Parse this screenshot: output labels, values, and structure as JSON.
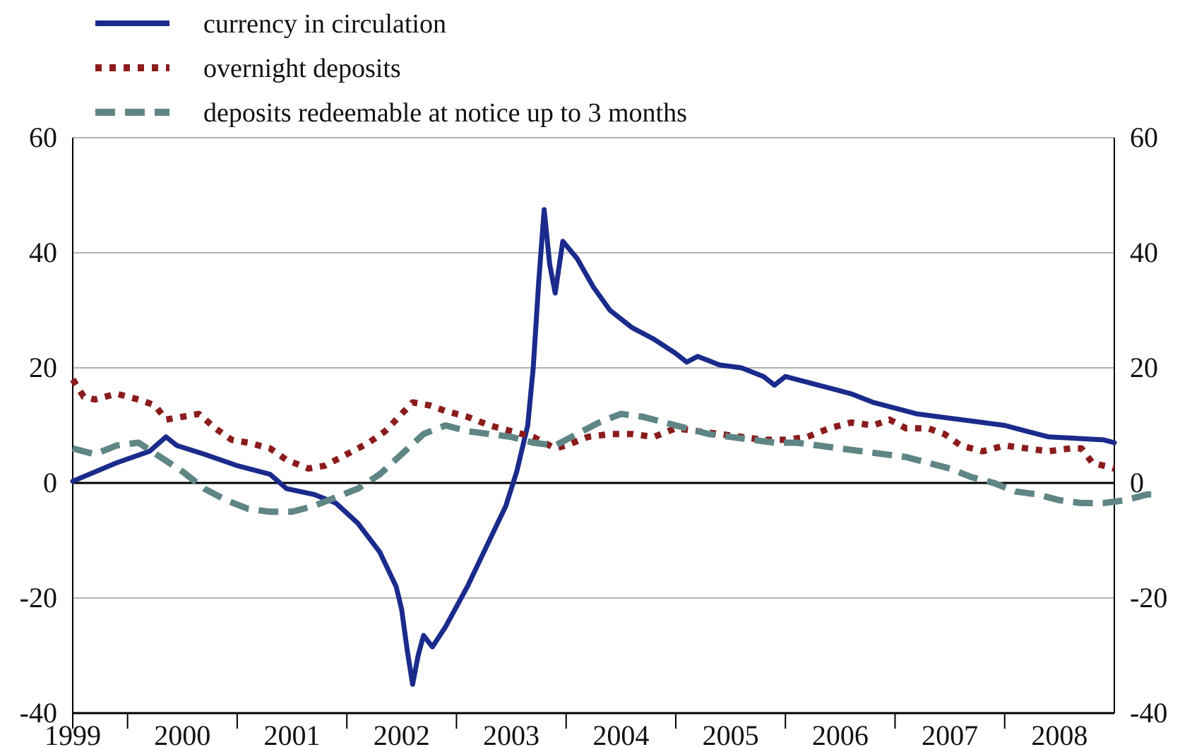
{
  "chart_data": {
    "type": "line",
    "title": "",
    "xlabel": "",
    "ylabel": "",
    "x_start": 1999.0,
    "x_end": 2008.5,
    "ylim": [
      -40,
      60
    ],
    "yticks": [
      -40,
      -20,
      0,
      20,
      40,
      60
    ],
    "x_tick_labels": [
      {
        "year": 1999,
        "label": "1999"
      },
      {
        "year": 2000,
        "label": "2000"
      },
      {
        "year": 2001,
        "label": "2001"
      },
      {
        "year": 2002,
        "label": "2002"
      },
      {
        "year": 2003,
        "label": "2003"
      },
      {
        "year": 2004,
        "label": "2004"
      },
      {
        "year": 2005,
        "label": "2005"
      },
      {
        "year": 2006,
        "label": "2006"
      },
      {
        "year": 2007,
        "label": "2007"
      },
      {
        "year": 2008,
        "label": "2008"
      }
    ],
    "grid": true,
    "legend_position": "top-left",
    "series": [
      {
        "name": "currency in circulation",
        "color": "#1a2b8c",
        "style": "solid",
        "points": [
          [
            1999.0,
            0.3
          ],
          [
            1999.15,
            1.5
          ],
          [
            1999.4,
            3.5
          ],
          [
            1999.7,
            5.5
          ],
          [
            1999.85,
            8.0
          ],
          [
            1999.95,
            6.5
          ],
          [
            2000.2,
            5.0
          ],
          [
            2000.5,
            3.0
          ],
          [
            2000.8,
            1.5
          ],
          [
            2000.95,
            -1.0
          ],
          [
            2001.2,
            -2.0
          ],
          [
            2001.4,
            -3.5
          ],
          [
            2001.6,
            -7.0
          ],
          [
            2001.8,
            -12.0
          ],
          [
            2001.95,
            -18.0
          ],
          [
            2002.0,
            -22.0
          ],
          [
            2002.05,
            -29.0
          ],
          [
            2002.1,
            -35.0
          ],
          [
            2002.15,
            -30.0
          ],
          [
            2002.2,
            -26.5
          ],
          [
            2002.28,
            -28.5
          ],
          [
            2002.4,
            -25.0
          ],
          [
            2002.6,
            -18.0
          ],
          [
            2002.8,
            -10.0
          ],
          [
            2002.95,
            -4.0
          ],
          [
            2003.05,
            2.0
          ],
          [
            2003.15,
            10.0
          ],
          [
            2003.2,
            20.0
          ],
          [
            2003.25,
            35.0
          ],
          [
            2003.3,
            47.5
          ],
          [
            2003.35,
            38.0
          ],
          [
            2003.4,
            33.0
          ],
          [
            2003.47,
            42.0
          ],
          [
            2003.6,
            39.0
          ],
          [
            2003.75,
            34.0
          ],
          [
            2003.9,
            30.0
          ],
          [
            2004.1,
            27.0
          ],
          [
            2004.3,
            25.0
          ],
          [
            2004.5,
            22.5
          ],
          [
            2004.6,
            21.0
          ],
          [
            2004.7,
            22.0
          ],
          [
            2004.9,
            20.5
          ],
          [
            2005.1,
            20.0
          ],
          [
            2005.3,
            18.5
          ],
          [
            2005.4,
            17.0
          ],
          [
            2005.5,
            18.5
          ],
          [
            2005.7,
            17.5
          ],
          [
            2005.9,
            16.5
          ],
          [
            2006.1,
            15.5
          ],
          [
            2006.3,
            14.0
          ],
          [
            2006.5,
            13.0
          ],
          [
            2006.7,
            12.0
          ],
          [
            2006.9,
            11.5
          ],
          [
            2007.1,
            11.0
          ],
          [
            2007.3,
            10.5
          ],
          [
            2007.5,
            10.0
          ],
          [
            2007.7,
            9.0
          ],
          [
            2007.9,
            8.0
          ],
          [
            2008.1,
            7.8
          ],
          [
            2008.3,
            7.6
          ],
          [
            2008.4,
            7.5
          ],
          [
            2008.5,
            7.0
          ]
        ]
      },
      {
        "name": "overnight deposits",
        "color": "#8b1c1c",
        "style": "dotted",
        "points": [
          [
            1999.0,
            18.0
          ],
          [
            1999.1,
            15.0
          ],
          [
            1999.2,
            14.5
          ],
          [
            1999.4,
            15.5
          ],
          [
            1999.6,
            14.5
          ],
          [
            1999.75,
            13.5
          ],
          [
            1999.85,
            11.0
          ],
          [
            2000.0,
            11.5
          ],
          [
            2000.15,
            12.0
          ],
          [
            2000.3,
            9.5
          ],
          [
            2000.45,
            7.5
          ],
          [
            2000.6,
            7.0
          ],
          [
            2000.8,
            6.0
          ],
          [
            2000.95,
            4.0
          ],
          [
            2001.15,
            2.5
          ],
          [
            2001.3,
            3.0
          ],
          [
            2001.5,
            5.0
          ],
          [
            2001.7,
            7.0
          ],
          [
            2001.85,
            9.0
          ],
          [
            2002.0,
            12.0
          ],
          [
            2002.1,
            14.0
          ],
          [
            2002.25,
            13.5
          ],
          [
            2002.4,
            12.5
          ],
          [
            2002.6,
            11.5
          ],
          [
            2002.8,
            10.0
          ],
          [
            2003.0,
            9.0
          ],
          [
            2003.2,
            8.0
          ],
          [
            2003.4,
            6.0
          ],
          [
            2003.5,
            6.5
          ],
          [
            2003.7,
            8.0
          ],
          [
            2003.9,
            8.5
          ],
          [
            2004.1,
            8.5
          ],
          [
            2004.3,
            8.0
          ],
          [
            2004.5,
            9.5
          ],
          [
            2004.7,
            9.0
          ],
          [
            2004.9,
            8.5
          ],
          [
            2005.1,
            8.0
          ],
          [
            2005.3,
            7.5
          ],
          [
            2005.5,
            7.5
          ],
          [
            2005.7,
            8.0
          ],
          [
            2005.9,
            9.5
          ],
          [
            2006.1,
            10.5
          ],
          [
            2006.3,
            10.0
          ],
          [
            2006.45,
            11.0
          ],
          [
            2006.6,
            9.5
          ],
          [
            2006.8,
            9.5
          ],
          [
            2006.95,
            8.5
          ],
          [
            2007.1,
            6.5
          ],
          [
            2007.3,
            5.5
          ],
          [
            2007.5,
            6.5
          ],
          [
            2007.7,
            6.0
          ],
          [
            2007.9,
            5.5
          ],
          [
            2008.1,
            6.0
          ],
          [
            2008.2,
            6.0
          ],
          [
            2008.3,
            3.5
          ],
          [
            2008.4,
            3.0
          ],
          [
            2008.5,
            2.5
          ]
        ]
      },
      {
        "name": "deposits redeemable at notice up to 3 months",
        "color": "#5f8585",
        "style": "dashed",
        "points": [
          [
            1999.0,
            6.0
          ],
          [
            1999.2,
            5.0
          ],
          [
            1999.4,
            6.5
          ],
          [
            1999.6,
            7.0
          ],
          [
            1999.8,
            4.5
          ],
          [
            2000.0,
            2.0
          ],
          [
            2000.2,
            -1.0
          ],
          [
            2000.4,
            -3.0
          ],
          [
            2000.6,
            -4.5
          ],
          [
            2000.8,
            -5.0
          ],
          [
            2001.0,
            -5.0
          ],
          [
            2001.2,
            -4.0
          ],
          [
            2001.4,
            -2.5
          ],
          [
            2001.6,
            -1.0
          ],
          [
            2001.8,
            1.5
          ],
          [
            2002.0,
            5.0
          ],
          [
            2002.2,
            8.5
          ],
          [
            2002.4,
            10.0
          ],
          [
            2002.6,
            9.0
          ],
          [
            2002.8,
            8.5
          ],
          [
            2003.0,
            8.0
          ],
          [
            2003.2,
            7.0
          ],
          [
            2003.4,
            6.5
          ],
          [
            2003.6,
            8.5
          ],
          [
            2003.8,
            10.5
          ],
          [
            2004.0,
            12.0
          ],
          [
            2004.2,
            11.5
          ],
          [
            2004.4,
            10.5
          ],
          [
            2004.6,
            9.5
          ],
          [
            2004.8,
            8.5
          ],
          [
            2005.0,
            8.0
          ],
          [
            2005.2,
            7.5
          ],
          [
            2005.4,
            7.0
          ],
          [
            2005.6,
            7.0
          ],
          [
            2005.8,
            6.5
          ],
          [
            2006.0,
            6.0
          ],
          [
            2006.2,
            5.5
          ],
          [
            2006.4,
            5.0
          ],
          [
            2006.6,
            4.5
          ],
          [
            2006.8,
            3.5
          ],
          [
            2007.0,
            2.5
          ],
          [
            2007.2,
            1.0
          ],
          [
            2007.4,
            0.0
          ],
          [
            2007.6,
            -1.5
          ],
          [
            2007.8,
            -2.0
          ],
          [
            2008.0,
            -3.0
          ],
          [
            2008.2,
            -3.5
          ],
          [
            2008.4,
            -3.5
          ],
          [
            2008.6,
            -3.0
          ],
          [
            2008.8,
            -2.0
          ],
          [
            2008.9,
            -2.0
          ]
        ]
      }
    ]
  }
}
